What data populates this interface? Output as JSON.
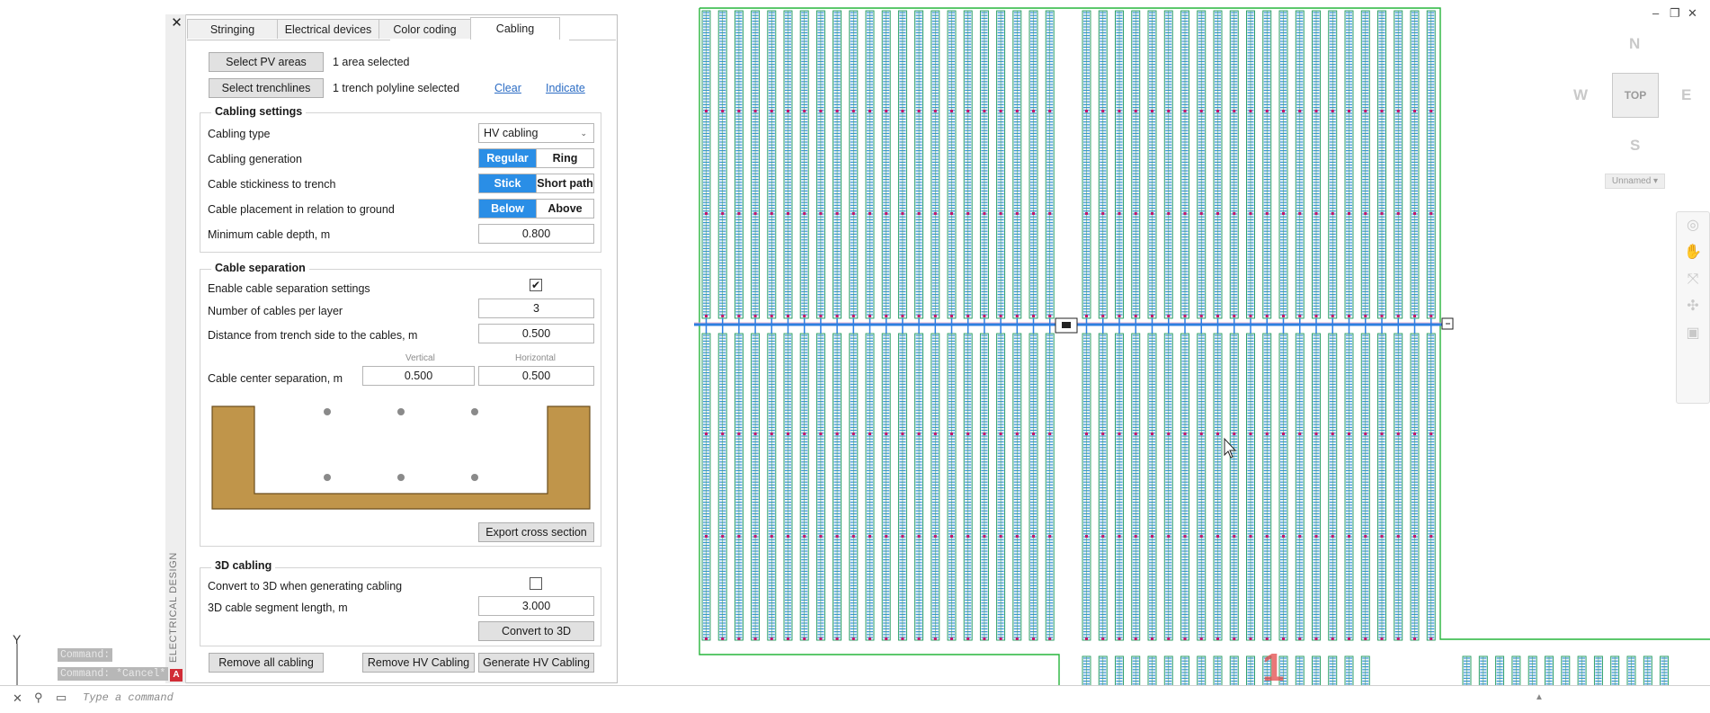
{
  "tabs": [
    "Stringing",
    "Electrical devices",
    "Color coding",
    "Cabling"
  ],
  "active_tab": "Cabling",
  "palette_title": "ELECTRICAL DESIGN",
  "selection": {
    "pv_button": "Select PV areas",
    "pv_status": "1 area selected",
    "trench_button": "Select trenchlines",
    "trench_status": "1 trench polyline selected",
    "clear_link": "Clear",
    "indicate_link": "Indicate"
  },
  "cabling_settings": {
    "title": "Cabling settings",
    "type_label": "Cabling type",
    "type_value": "HV cabling",
    "generation_label": "Cabling generation",
    "generation_options": [
      "Regular",
      "Ring"
    ],
    "stickiness_label": "Cable stickiness to trench",
    "stickiness_options": [
      "Stick",
      "Short path"
    ],
    "placement_label": "Cable placement in relation to ground",
    "placement_options": [
      "Below",
      "Above"
    ],
    "depth_label": "Minimum cable depth, m",
    "depth_value": "0.800"
  },
  "cable_separation": {
    "title": "Cable separation",
    "enable_label": "Enable cable separation settings",
    "enable_checked": "✔",
    "per_layer_label": "Number of cables per layer",
    "per_layer_value": "3",
    "distance_label": "Distance from trench side to the cables, m",
    "distance_value": "0.500",
    "vertical_header": "Vertical",
    "horizontal_header": "Horizontal",
    "center_label": "Cable center separation, m",
    "vertical_value": "0.500",
    "horizontal_value": "0.500",
    "export_button": "Export cross section",
    "trench_color": "#c0954a"
  },
  "cabling_3d": {
    "title": "3D cabling",
    "convert_label": "Convert to 3D when generating cabling",
    "segment_label": "3D cable segment length, m",
    "segment_value": "3.000",
    "convert_button": "Convert to 3D"
  },
  "footer_buttons": {
    "remove_all": "Remove all cabling",
    "remove_hv": "Remove HV Cabling",
    "generate_hv": "Generate HV Cabling"
  },
  "command_line": {
    "history": [
      "Command:",
      "Command: *Cancel*"
    ],
    "placeholder": "Type a command"
  },
  "viewcube": {
    "north": "N",
    "south": "S",
    "east": "E",
    "west": "W",
    "face": "TOP",
    "ucs": "Unnamed"
  },
  "ucs_axis_label": "Y",
  "drawing": {
    "block_label": "1",
    "module_color": "#2e8fd8",
    "frame_color": "#1f9a5a",
    "boundary_color": "#27b53b",
    "trench_line_color": "#2e7fe0"
  },
  "icons": [
    "close-icon",
    "checkmark-icon",
    "chevron-down-icon",
    "autodesk-icon",
    "pan-icon",
    "zoom-icon",
    "orbit-icon",
    "cursor-icon"
  ]
}
